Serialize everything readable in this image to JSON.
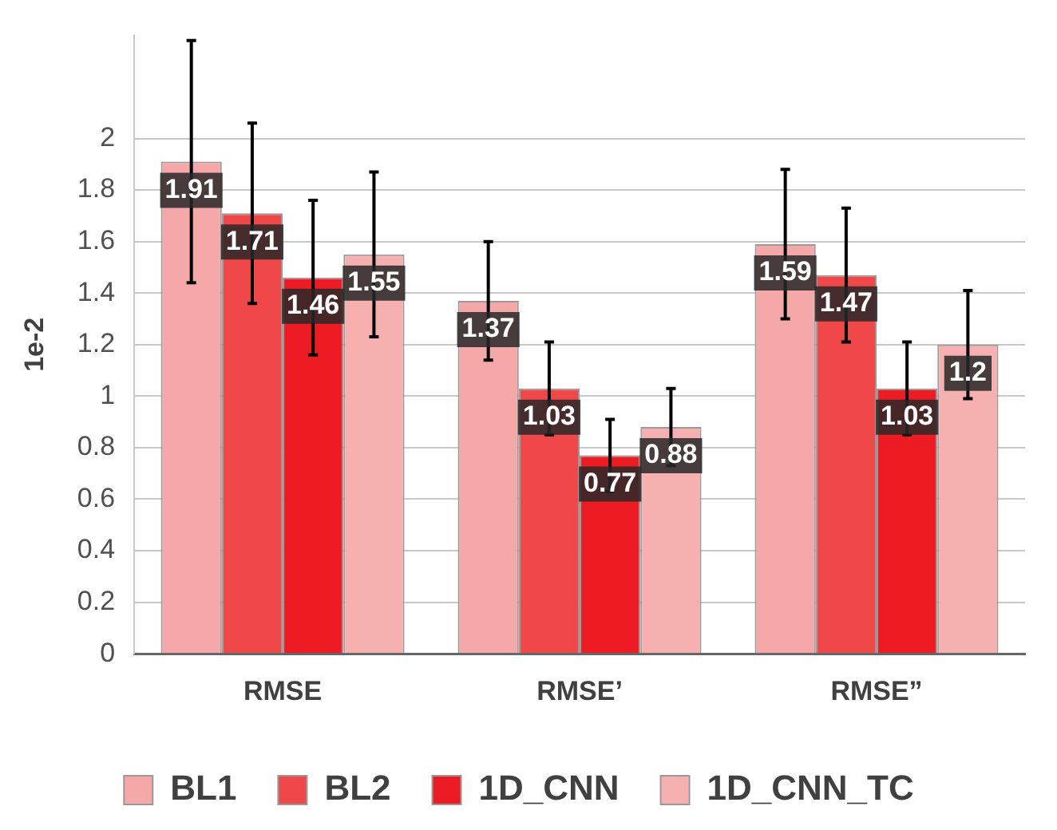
{
  "chart_data": {
    "type": "bar",
    "ylabel": "1e-2",
    "categories": [
      "RMSE",
      "RMSE’",
      "RMSE”"
    ],
    "series": [
      {
        "name": "BL1",
        "color": "#f5a8a8",
        "values": [
          1.91,
          1.37,
          1.59
        ],
        "errors": [
          0.47,
          0.23,
          0.29
        ]
      },
      {
        "name": "BL2",
        "color": "#f04848",
        "values": [
          1.71,
          1.03,
          1.47
        ],
        "errors": [
          0.35,
          0.18,
          0.26
        ]
      },
      {
        "name": "1D_CNN",
        "color": "#ed1c24",
        "values": [
          1.46,
          0.77,
          1.03
        ],
        "errors": [
          0.3,
          0.14,
          0.18
        ]
      },
      {
        "name": "1D_CNN_TC",
        "color": "#f7b0b0",
        "values": [
          1.55,
          0.88,
          1.2
        ],
        "errors": [
          0.32,
          0.15,
          0.21
        ]
      }
    ],
    "ylim": [
      0,
      2.4
    ],
    "yticks": [
      0,
      0.2,
      0.4,
      0.6,
      0.8,
      1,
      1.2,
      1.4,
      1.6,
      1.8,
      2
    ],
    "grid": "y",
    "legend": "bottom",
    "data_labels": true
  }
}
